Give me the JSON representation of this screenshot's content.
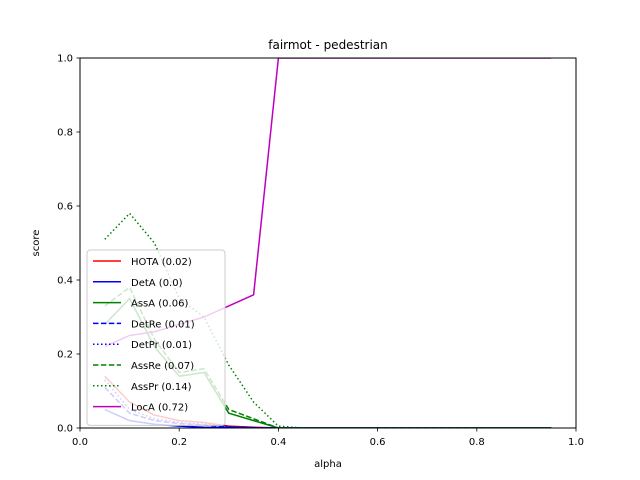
{
  "chart_data": {
    "type": "line",
    "title": "fairmot - pedestrian",
    "xlabel": "alpha",
    "ylabel": "score",
    "xlim": [
      0.0,
      1.0
    ],
    "ylim": [
      0.0,
      1.0
    ],
    "x_ticks": [
      "0.0",
      "0.2",
      "0.4",
      "0.6",
      "0.8",
      "1.0"
    ],
    "y_ticks": [
      "0.0",
      "0.2",
      "0.4",
      "0.6",
      "0.8",
      "1.0"
    ],
    "grid": false,
    "legend_position": "lower-left",
    "x": [
      0.05,
      0.1,
      0.15,
      0.2,
      0.25,
      0.3,
      0.35,
      0.4,
      0.45,
      0.5,
      0.55,
      0.6,
      0.65,
      0.7,
      0.75,
      0.8,
      0.85,
      0.9,
      0.95
    ],
    "series": [
      {
        "name": "HOTA (0.02)",
        "color": "#ff0000",
        "style": "solid",
        "values": [
          0.14,
          0.07,
          0.035,
          0.02,
          0.015,
          0.005,
          0.002,
          0.0,
          0,
          0,
          0,
          0,
          0,
          0,
          0,
          0,
          0,
          0,
          0
        ]
      },
      {
        "name": "DetA (0.0)",
        "color": "#0000ff",
        "style": "solid",
        "values": [
          0.05,
          0.02,
          0.01,
          0.005,
          0.002,
          0.001,
          0.0,
          0.0,
          0,
          0,
          0,
          0,
          0,
          0,
          0,
          0,
          0,
          0,
          0
        ]
      },
      {
        "name": "AssA (0.06)",
        "color": "#008000",
        "style": "solid",
        "values": [
          0.28,
          0.35,
          0.22,
          0.14,
          0.15,
          0.04,
          0.02,
          0.0,
          0,
          0,
          0,
          0,
          0,
          0,
          0,
          0,
          0,
          0,
          0
        ]
      },
      {
        "name": "DetRe (0.01)",
        "color": "#0000ff",
        "style": "dashed",
        "values": [
          0.11,
          0.04,
          0.02,
          0.012,
          0.008,
          0.003,
          0.001,
          0.0,
          0,
          0,
          0,
          0,
          0,
          0,
          0,
          0,
          0,
          0,
          0
        ]
      },
      {
        "name": "DetPr (0.01)",
        "color": "#0000ff",
        "style": "dotted",
        "values": [
          0.13,
          0.05,
          0.025,
          0.015,
          0.01,
          0.004,
          0.001,
          0.0,
          0,
          0,
          0,
          0,
          0,
          0,
          0,
          0,
          0,
          0,
          0
        ]
      },
      {
        "name": "AssRe (0.07)",
        "color": "#008000",
        "style": "dashed",
        "values": [
          0.33,
          0.38,
          0.24,
          0.15,
          0.16,
          0.05,
          0.025,
          0.0,
          0,
          0,
          0,
          0,
          0,
          0,
          0,
          0,
          0,
          0,
          0
        ]
      },
      {
        "name": "AssPr (0.14)",
        "color": "#008000",
        "style": "dotted",
        "values": [
          0.51,
          0.58,
          0.5,
          0.35,
          0.3,
          0.17,
          0.07,
          0.005,
          0,
          0,
          0,
          0,
          0,
          0,
          0,
          0,
          0,
          0,
          0
        ]
      },
      {
        "name": "LocA (0.72)",
        "color": "#bf00bf",
        "style": "solid",
        "values": [
          0.22,
          0.25,
          0.26,
          0.28,
          0.3,
          0.33,
          0.36,
          1.0,
          1.0,
          1.0,
          1.0,
          1.0,
          1.0,
          1.0,
          1.0,
          1.0,
          1.0,
          1.0,
          1.0
        ]
      }
    ]
  }
}
